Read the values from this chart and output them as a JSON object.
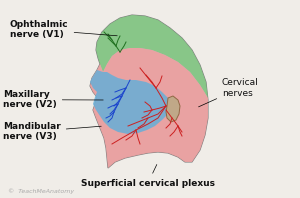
{
  "labels": {
    "ophthalmic": "Ophthalmic\nnerve (V1)",
    "maxillary": "Maxillary\nnerve (V2)",
    "mandibular": "Mandibular\nnerve (V3)",
    "cervical": "Cervical\nnerves",
    "superficial": "Superficial cervical plexus",
    "watermark": "TeachMeAnatomy"
  },
  "colors": {
    "green_region": "#82c882",
    "blue_region": "#6aaed6",
    "pink_region": "#f0a0a0",
    "gray_head": "#b8b8b8",
    "gray_head_dark": "#a0a0a0",
    "head_outline": "#808080",
    "nerve_red": "#cc2020",
    "nerve_blue": "#1a44cc",
    "nerve_green": "#207020",
    "label_text": "#111111",
    "background": "#f0ede8"
  }
}
